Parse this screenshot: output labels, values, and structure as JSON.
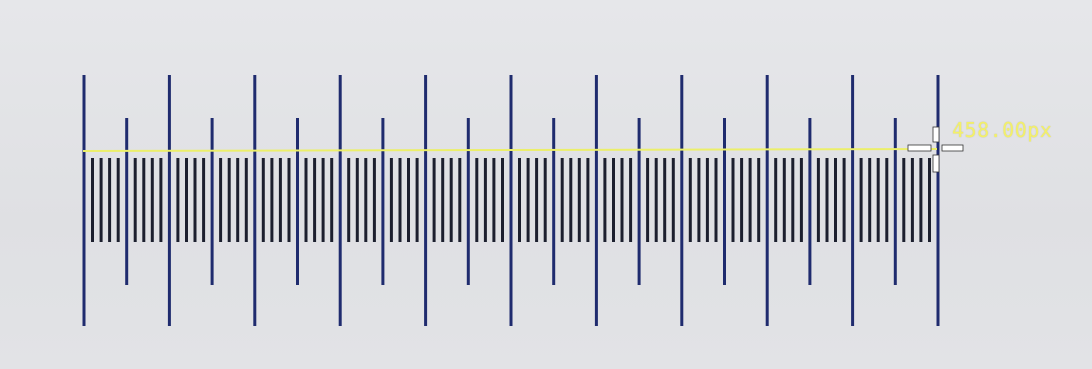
{
  "measurement": {
    "label": "458.00px"
  },
  "colors": {
    "background": "#e3e4e6",
    "major_tick": "#1f2b6e",
    "minor_tick": "#1c1f2e",
    "measure_line": "#ecef6a",
    "measure_text": "#f3f06a",
    "cursor": "#ffffff"
  },
  "icons": {
    "cursor": "crosshair-cursor-icon"
  }
}
